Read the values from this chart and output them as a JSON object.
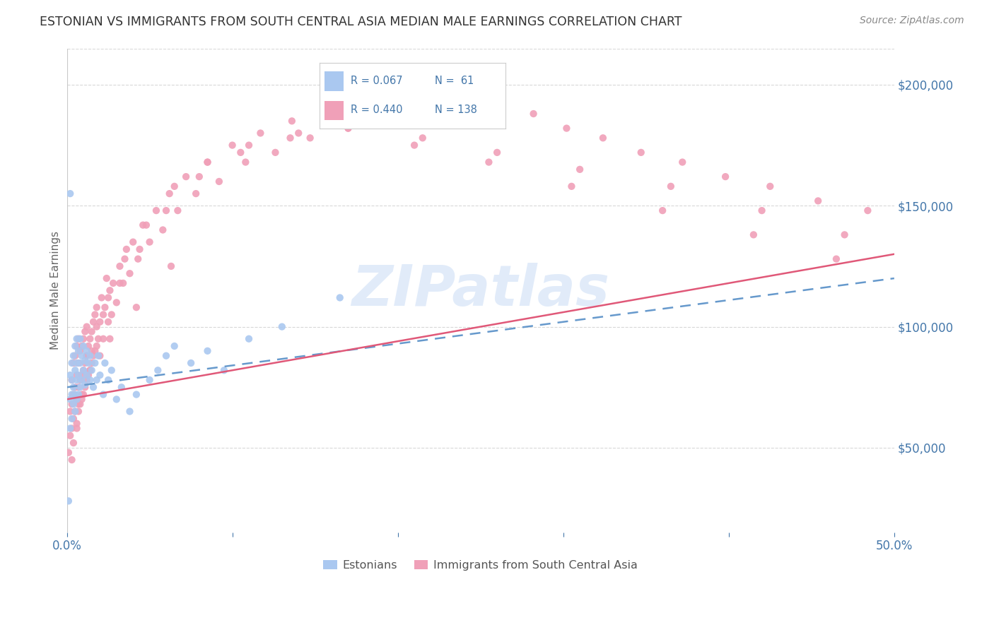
{
  "title": "ESTONIAN VS IMMIGRANTS FROM SOUTH CENTRAL ASIA MEDIAN MALE EARNINGS CORRELATION CHART",
  "source": "Source: ZipAtlas.com",
  "ylabel": "Median Male Earnings",
  "ytick_values": [
    50000,
    100000,
    150000,
    200000
  ],
  "xmin": 0.0,
  "xmax": 0.5,
  "ymin": 15000,
  "ymax": 215000,
  "r_estonian": 0.067,
  "n_estonian": 61,
  "r_immigrant": 0.44,
  "n_immigrant": 138,
  "background_color": "#ffffff",
  "grid_color": "#c8c8c8",
  "dot_size": 55,
  "estonian_color": "#aac8f0",
  "estonian_line_color": "#6699cc",
  "immigrant_color": "#f0a0b8",
  "immigrant_line_color": "#e05878",
  "title_color": "#333333",
  "axis_label_color": "#4477aa",
  "tick_color": "#4477aa",
  "watermark_text": "ZIPatlas",
  "watermark_color": "#aac8f0",
  "watermark_alpha": 0.35,
  "estonian_x": [
    0.001,
    0.002,
    0.002,
    0.002,
    0.003,
    0.003,
    0.003,
    0.003,
    0.004,
    0.004,
    0.004,
    0.005,
    0.005,
    0.005,
    0.005,
    0.006,
    0.006,
    0.006,
    0.006,
    0.007,
    0.007,
    0.007,
    0.008,
    0.008,
    0.008,
    0.009,
    0.009,
    0.01,
    0.01,
    0.011,
    0.011,
    0.012,
    0.012,
    0.013,
    0.014,
    0.014,
    0.015,
    0.016,
    0.017,
    0.018,
    0.019,
    0.02,
    0.022,
    0.023,
    0.025,
    0.027,
    0.03,
    0.033,
    0.038,
    0.042,
    0.05,
    0.055,
    0.06,
    0.065,
    0.075,
    0.085,
    0.095,
    0.11,
    0.13,
    0.165,
    0.002
  ],
  "estonian_y": [
    28000,
    58000,
    70000,
    80000,
    62000,
    72000,
    78000,
    85000,
    68000,
    75000,
    88000,
    65000,
    72000,
    82000,
    92000,
    70000,
    78000,
    85000,
    95000,
    72000,
    80000,
    90000,
    75000,
    85000,
    95000,
    78000,
    88000,
    82000,
    92000,
    76000,
    86000,
    80000,
    90000,
    85000,
    78000,
    88000,
    82000,
    75000,
    85000,
    78000,
    88000,
    80000,
    72000,
    85000,
    78000,
    82000,
    70000,
    75000,
    65000,
    72000,
    78000,
    82000,
    88000,
    92000,
    85000,
    90000,
    82000,
    95000,
    100000,
    112000,
    155000
  ],
  "immigrant_x": [
    0.001,
    0.002,
    0.002,
    0.003,
    0.003,
    0.003,
    0.004,
    0.004,
    0.004,
    0.005,
    0.005,
    0.005,
    0.006,
    0.006,
    0.006,
    0.006,
    0.007,
    0.007,
    0.007,
    0.007,
    0.008,
    0.008,
    0.008,
    0.009,
    0.009,
    0.009,
    0.01,
    0.01,
    0.01,
    0.011,
    0.011,
    0.011,
    0.012,
    0.012,
    0.012,
    0.013,
    0.013,
    0.014,
    0.014,
    0.015,
    0.015,
    0.016,
    0.016,
    0.017,
    0.017,
    0.018,
    0.018,
    0.019,
    0.02,
    0.02,
    0.021,
    0.022,
    0.023,
    0.024,
    0.025,
    0.026,
    0.027,
    0.028,
    0.03,
    0.032,
    0.034,
    0.036,
    0.038,
    0.04,
    0.043,
    0.046,
    0.05,
    0.054,
    0.058,
    0.062,
    0.067,
    0.072,
    0.078,
    0.085,
    0.092,
    0.1,
    0.108,
    0.117,
    0.126,
    0.136,
    0.147,
    0.158,
    0.17,
    0.183,
    0.197,
    0.212,
    0.228,
    0.245,
    0.263,
    0.282,
    0.302,
    0.324,
    0.347,
    0.372,
    0.398,
    0.425,
    0.454,
    0.484,
    0.003,
    0.007,
    0.012,
    0.018,
    0.025,
    0.035,
    0.048,
    0.065,
    0.085,
    0.11,
    0.14,
    0.175,
    0.215,
    0.26,
    0.31,
    0.365,
    0.42,
    0.47,
    0.004,
    0.009,
    0.015,
    0.022,
    0.032,
    0.044,
    0.06,
    0.08,
    0.105,
    0.135,
    0.17,
    0.21,
    0.255,
    0.305,
    0.36,
    0.415,
    0.465,
    0.006,
    0.014,
    0.026,
    0.042,
    0.063
  ],
  "immigrant_y": [
    48000,
    55000,
    65000,
    58000,
    68000,
    78000,
    62000,
    72000,
    85000,
    65000,
    75000,
    88000,
    60000,
    70000,
    80000,
    92000,
    65000,
    75000,
    85000,
    95000,
    68000,
    78000,
    90000,
    70000,
    80000,
    92000,
    72000,
    82000,
    95000,
    75000,
    85000,
    98000,
    78000,
    88000,
    100000,
    80000,
    92000,
    82000,
    95000,
    85000,
    98000,
    88000,
    102000,
    90000,
    105000,
    92000,
    108000,
    95000,
    88000,
    102000,
    112000,
    95000,
    108000,
    120000,
    102000,
    115000,
    105000,
    118000,
    110000,
    125000,
    118000,
    132000,
    122000,
    135000,
    128000,
    142000,
    135000,
    148000,
    140000,
    155000,
    148000,
    162000,
    155000,
    168000,
    160000,
    175000,
    168000,
    180000,
    172000,
    185000,
    178000,
    190000,
    182000,
    195000,
    185000,
    195000,
    188000,
    192000,
    185000,
    188000,
    182000,
    178000,
    172000,
    168000,
    162000,
    158000,
    152000,
    148000,
    45000,
    68000,
    88000,
    100000,
    112000,
    128000,
    142000,
    158000,
    168000,
    175000,
    180000,
    185000,
    178000,
    172000,
    165000,
    158000,
    148000,
    138000,
    52000,
    72000,
    90000,
    105000,
    118000,
    132000,
    148000,
    162000,
    172000,
    178000,
    182000,
    175000,
    168000,
    158000,
    148000,
    138000,
    128000,
    58000,
    82000,
    95000,
    108000,
    125000
  ]
}
